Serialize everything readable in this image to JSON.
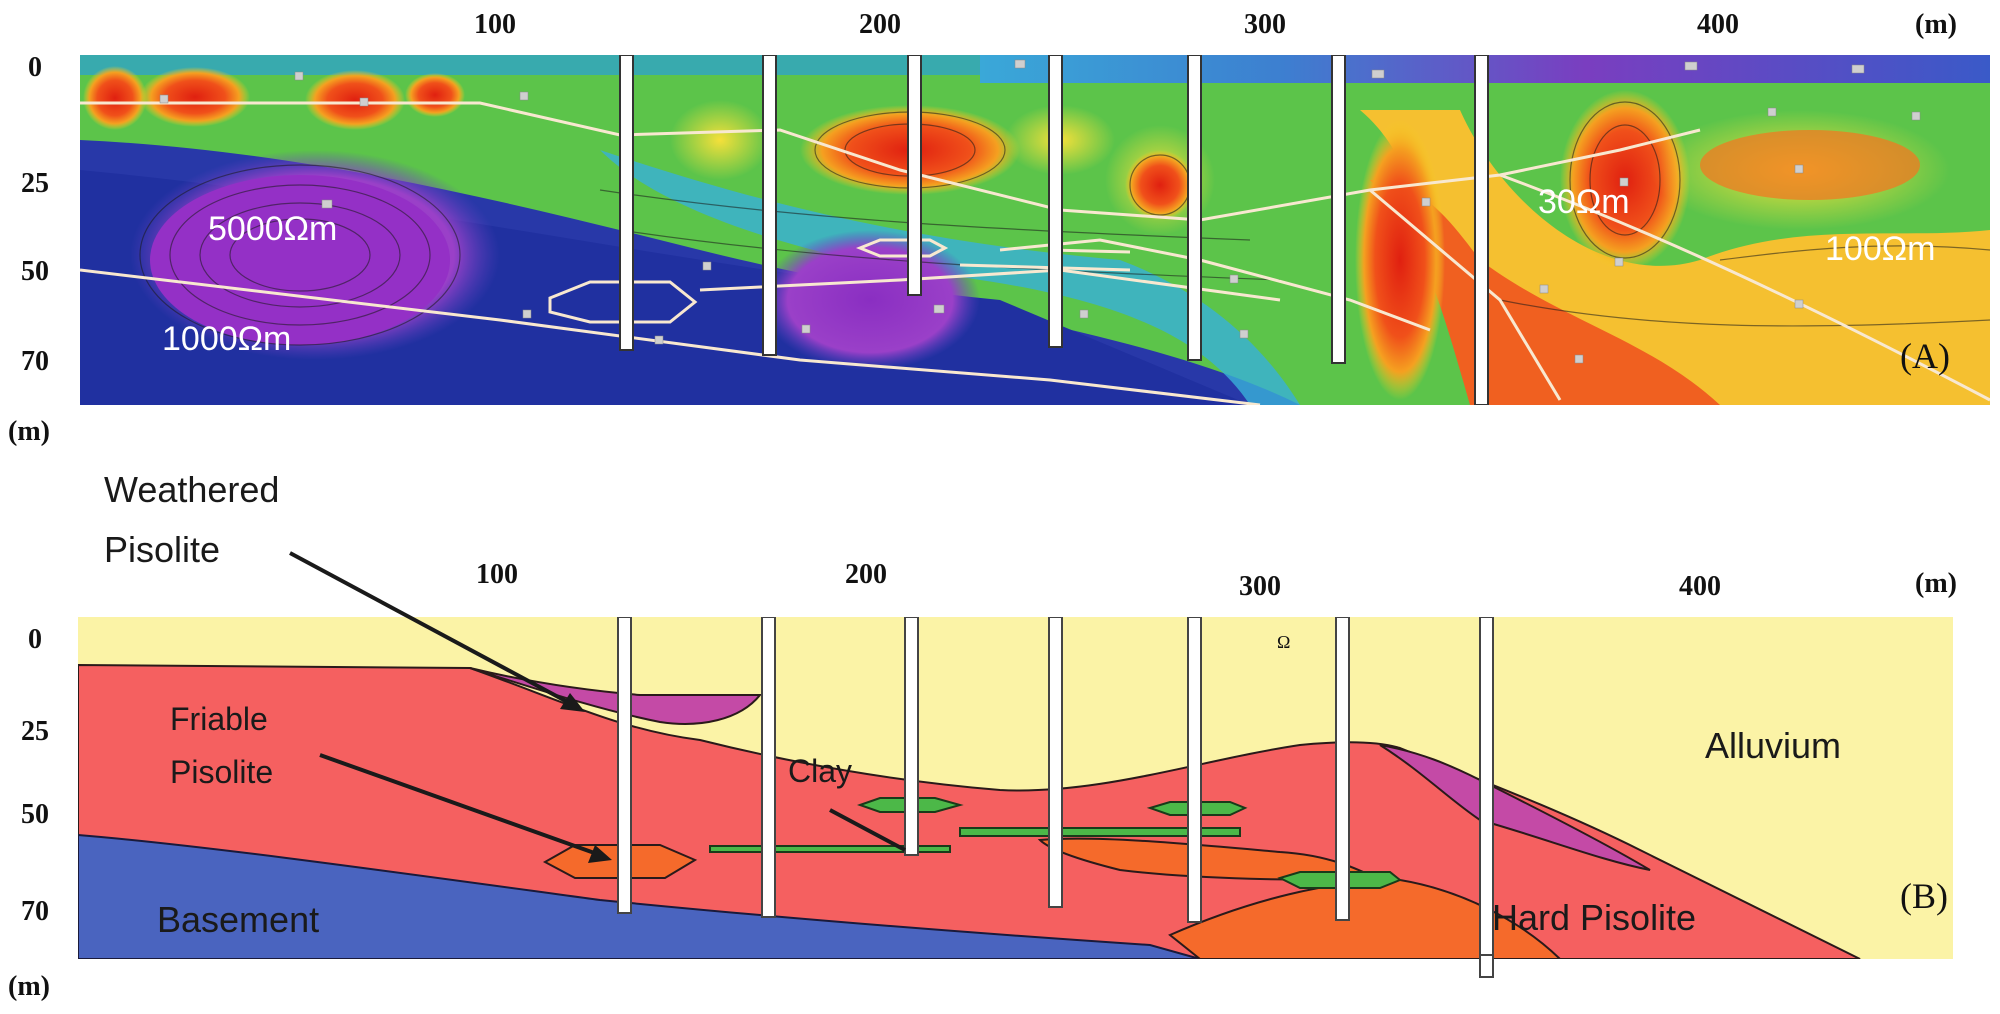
{
  "panel_a": {
    "tag": "(A)",
    "x_ticks": [
      "100",
      "200",
      "300",
      "400"
    ],
    "x_unit": "(m)",
    "y_ticks": [
      "0",
      "25",
      "50",
      "70"
    ],
    "y_unit": "(m)",
    "labels": {
      "r5000": "5000Ωm",
      "r1000": "1000Ωm",
      "r30": "30Ωm",
      "r100": "100Ωm"
    }
  },
  "panel_b": {
    "tag": "(B)",
    "x_ticks": [
      "100",
      "200",
      "300",
      "400"
    ],
    "x_unit": "(m)",
    "y_ticks": [
      "0",
      "25",
      "50",
      "70"
    ],
    "y_unit": "(m)",
    "omega": "Ω",
    "labels": {
      "weathered_1": "Weathered",
      "weathered_2": "Pisolite",
      "friable_1": "Friable",
      "friable_2": "Pisolite",
      "clay": "Clay",
      "alluvium": "Alluvium",
      "basement": "Basement",
      "hard": "Hard Pisolite"
    }
  },
  "colors": {
    "alluvium": "#fbf3a6",
    "pisolite": "#f56060",
    "weathered": "#c44aa6",
    "basement": "#4a64bf",
    "clay": "#4cb848",
    "hard": "#f56a2b"
  }
}
